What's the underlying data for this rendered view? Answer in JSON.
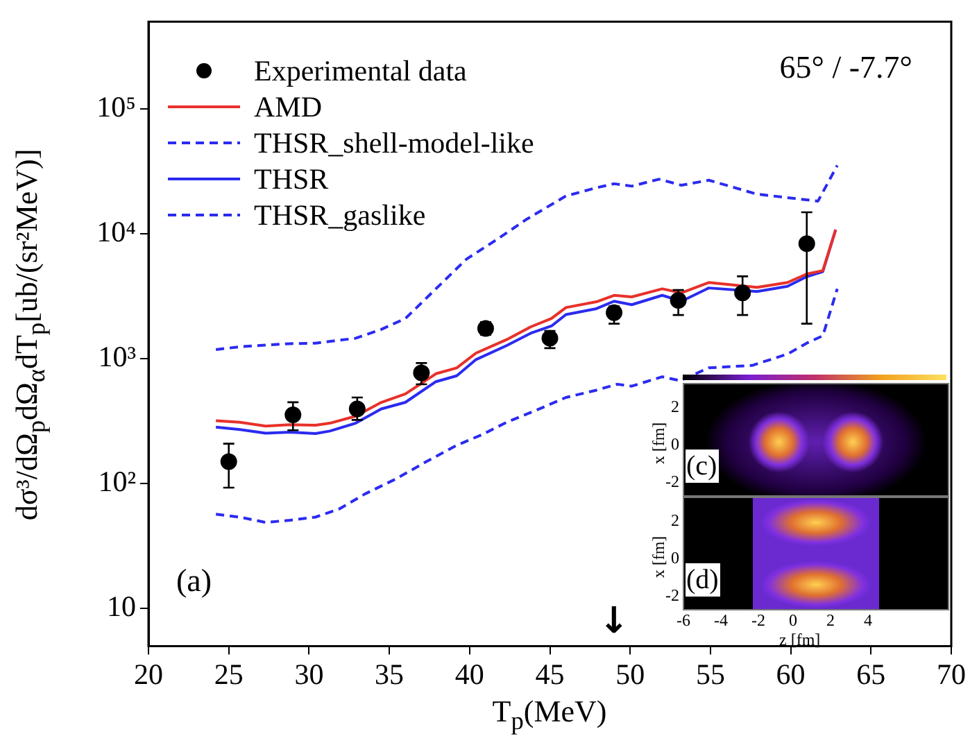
{
  "chart_data": {
    "type": "line",
    "xlabel": "T$_{p}$(MeV)",
    "ylabel": "dσ³/dΩ$_{p}$dΩ$_{α}$dT$_{p}$[ub/(sr²MeV)]",
    "xlim": [
      20,
      70
    ],
    "xticks": [
      20,
      25,
      30,
      35,
      40,
      45,
      50,
      55,
      60,
      65,
      70
    ],
    "ylim": [
      5,
      500000
    ],
    "yticks": [
      10,
      {
        "value": 100,
        "label": "10²"
      },
      {
        "value": 1000,
        "label": "10³"
      },
      {
        "value": 10000,
        "label": "10⁴"
      },
      {
        "value": 100000,
        "label": "10⁵"
      }
    ],
    "log": "y",
    "grid": false,
    "legend": "top left",
    "annotations": [
      "65° / -7.7°",
      "(a)",
      "(c)",
      "x [fm]",
      "2",
      "0",
      "-2",
      "(d)",
      "x [fm]",
      "2",
      "0",
      "-2",
      "z [fm]",
      "-6",
      "-4",
      "-2",
      "0",
      "2",
      "4",
      "↓"
    ],
    "series": [
      {
        "name": "Experimental data",
        "type": "scatter",
        "color": "#000000",
        "marker": "circle",
        "x": [
          25,
          29,
          33,
          37,
          41,
          45,
          49,
          53,
          57,
          61
        ],
        "values": [
          150,
          356,
          397,
          771,
          1750,
          1460,
          2340,
          2940,
          3370,
          8350
        ],
        "errors": [
          [
            93,
            209
          ],
          [
            268,
            449
          ],
          [
            324,
            490
          ],
          [
            625,
            925
          ],
          [
            1556,
            1970
          ],
          [
            1217,
            1670
          ],
          [
            1910,
            2630
          ],
          [
            2240,
            3550
          ],
          [
            2240,
            4570
          ],
          [
            1910,
            14900
          ]
        ]
      },
      {
        "name": "AMD",
        "color": "#e8312a",
        "line_style": "solid",
        "marker": "none",
        "x": [
          24.2,
          25.7,
          27.3,
          28.8,
          30.4,
          31.3,
          32.9,
          34.5,
          36.0,
          37.9,
          39.2,
          40.4,
          42.3,
          43.8,
          45.1,
          46.0,
          47.9,
          49.0,
          50.1,
          52.0,
          53.2,
          54.9,
          57.9,
          59.8,
          61.0,
          62.0,
          62.8
        ],
        "values": [
          319,
          310,
          289,
          297,
          294,
          305,
          347,
          448,
          523,
          759,
          846,
          1111,
          1422,
          1800,
          2100,
          2570,
          2860,
          3220,
          3130,
          3630,
          3370,
          4080,
          3730,
          4080,
          4770,
          5080,
          10800
        ]
      },
      {
        "name": "THSR_shell-model-like",
        "color": "#2b2bf0",
        "line_style": "dashed",
        "marker": "none",
        "x": [
          24.2,
          25.7,
          27.3,
          28.8,
          30.4,
          31.9,
          33.5,
          35.4,
          37.3,
          39.2,
          40.8,
          42.3,
          44.2,
          46.0,
          47.9,
          49.2,
          50.1,
          52.0,
          53.1,
          54.9,
          57.6,
          59.8,
          61.0,
          62.0,
          62.9
        ],
        "values": [
          57,
          54,
          49,
          51,
          54,
          63,
          83,
          109,
          150,
          203,
          248,
          310,
          390,
          490,
          561,
          626,
          604,
          718,
          668,
          846,
          885,
          1091,
          1334,
          1528,
          3630
        ]
      },
      {
        "name": "THSR",
        "color": "#2b2bf0",
        "line_style": "solid",
        "marker": "none",
        "x": [
          24.2,
          25.7,
          27.3,
          28.8,
          30.4,
          31.3,
          32.9,
          34.5,
          36.0,
          37.9,
          39.2,
          40.4,
          42.3,
          43.8,
          45.1,
          46.0,
          47.9,
          49.0,
          50.1,
          52.0,
          53.2,
          54.9,
          57.9,
          59.8,
          61.0,
          62.0,
          62.8
        ],
        "values": [
          284,
          271,
          254,
          259,
          252,
          264,
          305,
          397,
          448,
          656,
          731,
          986,
          1274,
          1600,
          1830,
          2260,
          2520,
          2890,
          2710,
          3220,
          2890,
          3690,
          3460,
          3800,
          4550,
          4990,
          10800
        ]
      },
      {
        "name": "THSR_gaslike",
        "color": "#2b2bf0",
        "line_style": "dashed",
        "marker": "none",
        "x": [
          24.2,
          25.7,
          28.8,
          30.4,
          32.9,
          34.5,
          36.0,
          37.9,
          39.8,
          41.7,
          43.5,
          46.0,
          47.9,
          49.0,
          50.1,
          51.8,
          53.2,
          54.9,
          57.9,
          59.8,
          61.7,
          62.9
        ],
        "values": [
          1183,
          1250,
          1321,
          1334,
          1460,
          1720,
          2100,
          3630,
          6270,
          9020,
          12970,
          20100,
          23400,
          25200,
          24100,
          27400,
          24500,
          26900,
          20800,
          19500,
          18300,
          35300
        ]
      }
    ]
  }
}
